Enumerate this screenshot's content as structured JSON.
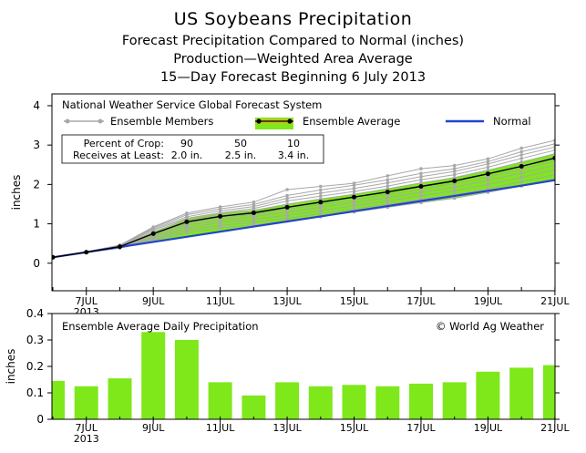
{
  "title": {
    "line1": "US Soybeans Precipitation",
    "line2": "Forecast Precipitation Compared to Normal (inches)",
    "line3": "Production—Weighted Area Average",
    "line4": "15—Day Forecast Beginning 6 July 2013"
  },
  "colors": {
    "ensemble_members": "#a8a8a8",
    "ensemble_fill": "#7ee81a",
    "ensemble_avg_line": "#000000",
    "ensemble_avg_marker_fill": "#e8b020",
    "normal": "#2244cc",
    "bar": "#7ee81a"
  },
  "chart_data": [
    {
      "type": "line",
      "source_label": "National Weather Service Global Forecast System",
      "ylabel": "inches",
      "ylim": [
        -0.7,
        4.3
      ],
      "yticks": [
        0,
        1,
        2,
        3,
        4
      ],
      "x_dates": [
        "6JUL",
        "7JUL",
        "8JUL",
        "9JUL",
        "10JUL",
        "11JUL",
        "12JUL",
        "13JUL",
        "14JUL",
        "15JUL",
        "16JUL",
        "17JUL",
        "18JUL",
        "19JUL",
        "20JUL",
        "21JUL"
      ],
      "x_tick_labels": [
        {
          "date": "7JUL",
          "label": "7JUL",
          "sub": "2013"
        },
        {
          "date": "9JUL",
          "label": "9JUL"
        },
        {
          "date": "11JUL",
          "label": "11JUL"
        },
        {
          "date": "13JUL",
          "label": "13JUL"
        },
        {
          "date": "15JUL",
          "label": "15JUL"
        },
        {
          "date": "17JUL",
          "label": "17JUL"
        },
        {
          "date": "19JUL",
          "label": "19JUL"
        },
        {
          "date": "21JUL",
          "label": "21JUL"
        }
      ],
      "legend": {
        "members_label": "Ensemble Members",
        "average_label": "Ensemble Average",
        "normal_label": "Normal"
      },
      "percent_table": {
        "row1_label": "Percent of Crop:",
        "row2_label": "Receives at Least:",
        "columns": [
          {
            "percent": "90",
            "amount": "2.0 in."
          },
          {
            "percent": "50",
            "amount": "2.5 in."
          },
          {
            "percent": "10",
            "amount": "3.4 in."
          }
        ]
      },
      "series": {
        "ensemble_average": [
          0.15,
          0.28,
          0.42,
          0.75,
          1.05,
          1.19,
          1.28,
          1.42,
          1.55,
          1.68,
          1.81,
          1.95,
          2.09,
          2.27,
          2.46,
          2.67
        ],
        "normal": [
          0.15,
          0.28,
          0.41,
          0.54,
          0.67,
          0.8,
          0.93,
          1.06,
          1.19,
          1.32,
          1.45,
          1.58,
          1.71,
          1.84,
          1.97,
          2.11
        ],
        "ensemble_members": [
          [
            0.15,
            0.29,
            0.46,
            0.92,
            1.27,
            1.43,
            1.55,
            1.87,
            1.95,
            2.03,
            2.22,
            2.4,
            2.48,
            2.65,
            2.92,
            3.12
          ],
          [
            0.15,
            0.29,
            0.45,
            0.9,
            1.23,
            1.38,
            1.49,
            1.72,
            1.86,
            1.98,
            2.12,
            2.28,
            2.4,
            2.58,
            2.83,
            3.03
          ],
          [
            0.15,
            0.29,
            0.45,
            0.87,
            1.18,
            1.33,
            1.44,
            1.65,
            1.78,
            1.9,
            2.04,
            2.2,
            2.33,
            2.52,
            2.75,
            2.95
          ],
          [
            0.15,
            0.28,
            0.44,
            0.84,
            1.14,
            1.28,
            1.39,
            1.58,
            1.7,
            1.82,
            1.96,
            2.12,
            2.25,
            2.44,
            2.66,
            2.87
          ],
          [
            0.15,
            0.28,
            0.43,
            0.8,
            1.1,
            1.24,
            1.34,
            1.5,
            1.63,
            1.75,
            1.89,
            2.04,
            2.17,
            2.36,
            2.57,
            2.78
          ],
          [
            0.15,
            0.28,
            0.42,
            0.76,
            1.06,
            1.2,
            1.29,
            1.43,
            1.56,
            1.68,
            1.82,
            1.96,
            2.1,
            2.28,
            2.48,
            2.69
          ],
          [
            0.15,
            0.28,
            0.42,
            0.72,
            1.01,
            1.15,
            1.24,
            1.37,
            1.49,
            1.61,
            1.74,
            1.88,
            2.02,
            2.19,
            2.39,
            2.59
          ],
          [
            0.15,
            0.28,
            0.41,
            0.68,
            0.96,
            1.09,
            1.18,
            1.3,
            1.42,
            1.54,
            1.66,
            1.8,
            1.93,
            2.1,
            2.29,
            2.48
          ],
          [
            0.15,
            0.27,
            0.4,
            0.64,
            0.9,
            1.03,
            1.11,
            1.22,
            1.34,
            1.46,
            1.58,
            1.71,
            1.84,
            2.0,
            2.18,
            2.37
          ],
          [
            0.15,
            0.27,
            0.39,
            0.6,
            0.84,
            0.96,
            1.04,
            1.14,
            1.26,
            1.38,
            1.5,
            1.62,
            1.74,
            1.89,
            2.07,
            2.25
          ],
          [
            0.15,
            0.27,
            0.38,
            0.57,
            0.78,
            0.9,
            0.97,
            1.07,
            1.18,
            1.3,
            1.42,
            1.54,
            1.65,
            1.8,
            1.96,
            2.14
          ]
        ]
      }
    },
    {
      "type": "bar",
      "title": "Ensemble Average Daily Precipitation",
      "credit": "© World Ag Weather",
      "ylabel": "inches",
      "ylim": [
        0,
        0.4
      ],
      "yticks": [
        0,
        0.1,
        0.2,
        0.3,
        0.4
      ],
      "ytick_labels": [
        "0",
        "0.1",
        "0.2",
        "0.3",
        "0.4"
      ],
      "categories": [
        "6JUL",
        "7JUL",
        "8JUL",
        "9JUL",
        "10JUL",
        "11JUL",
        "12JUL",
        "13JUL",
        "14JUL",
        "15JUL",
        "16JUL",
        "17JUL",
        "18JUL",
        "19JUL",
        "20JUL",
        "21JUL"
      ],
      "values": [
        0.145,
        0.125,
        0.155,
        0.33,
        0.3,
        0.14,
        0.09,
        0.14,
        0.125,
        0.13,
        0.125,
        0.135,
        0.14,
        0.18,
        0.195,
        0.205
      ],
      "x_tick_labels": [
        {
          "date": "7JUL",
          "label": "7JUL",
          "sub": "2013"
        },
        {
          "date": "9JUL",
          "label": "9JUL"
        },
        {
          "date": "11JUL",
          "label": "11JUL"
        },
        {
          "date": "13JUL",
          "label": "13JUL"
        },
        {
          "date": "15JUL",
          "label": "15JUL"
        },
        {
          "date": "17JUL",
          "label": "17JUL"
        },
        {
          "date": "19JUL",
          "label": "19JUL"
        },
        {
          "date": "21JUL",
          "label": "21JUL"
        }
      ]
    }
  ]
}
